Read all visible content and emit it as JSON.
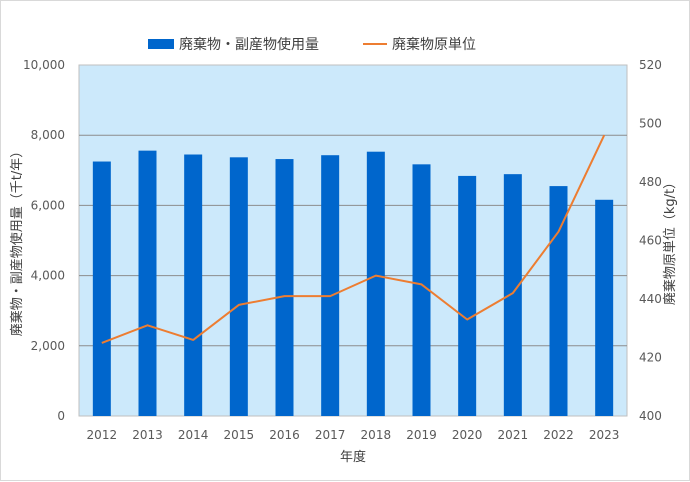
{
  "chart_data": {
    "type": "bar+line",
    "categories": [
      "2012",
      "2013",
      "2014",
      "2015",
      "2016",
      "2017",
      "2018",
      "2019",
      "2020",
      "2021",
      "2022",
      "2023"
    ],
    "series": [
      {
        "name": "廃棄物・副産物使用量",
        "type": "bar",
        "axis": "left",
        "color": "#0066CC",
        "values": [
          7250,
          7560,
          7450,
          7370,
          7320,
          7430,
          7530,
          7170,
          6840,
          6890,
          6550,
          6160
        ]
      },
      {
        "name": "廃棄物原単位",
        "type": "line",
        "axis": "right",
        "color": "#ED7D31",
        "values": [
          425,
          431,
          426,
          438,
          441,
          441,
          448,
          445,
          433,
          442,
          463,
          496
        ]
      }
    ],
    "xlabel": "年度",
    "ylabel_left": "廃棄物・副産物使用量（千t/年）",
    "ylabel_right": "廃棄物原単位（kg/t）",
    "ylim_left": [
      0,
      10000
    ],
    "ylim_right": [
      400,
      520
    ],
    "yticks_left": [
      "0",
      "2,000",
      "4,000",
      "6,000",
      "8,000",
      "10,000"
    ],
    "yticks_right": [
      "400",
      "420",
      "440",
      "460",
      "480",
      "500",
      "520"
    ],
    "plot_background": "#CCE9FB",
    "gridlines": true,
    "legend_position": "top-center"
  }
}
